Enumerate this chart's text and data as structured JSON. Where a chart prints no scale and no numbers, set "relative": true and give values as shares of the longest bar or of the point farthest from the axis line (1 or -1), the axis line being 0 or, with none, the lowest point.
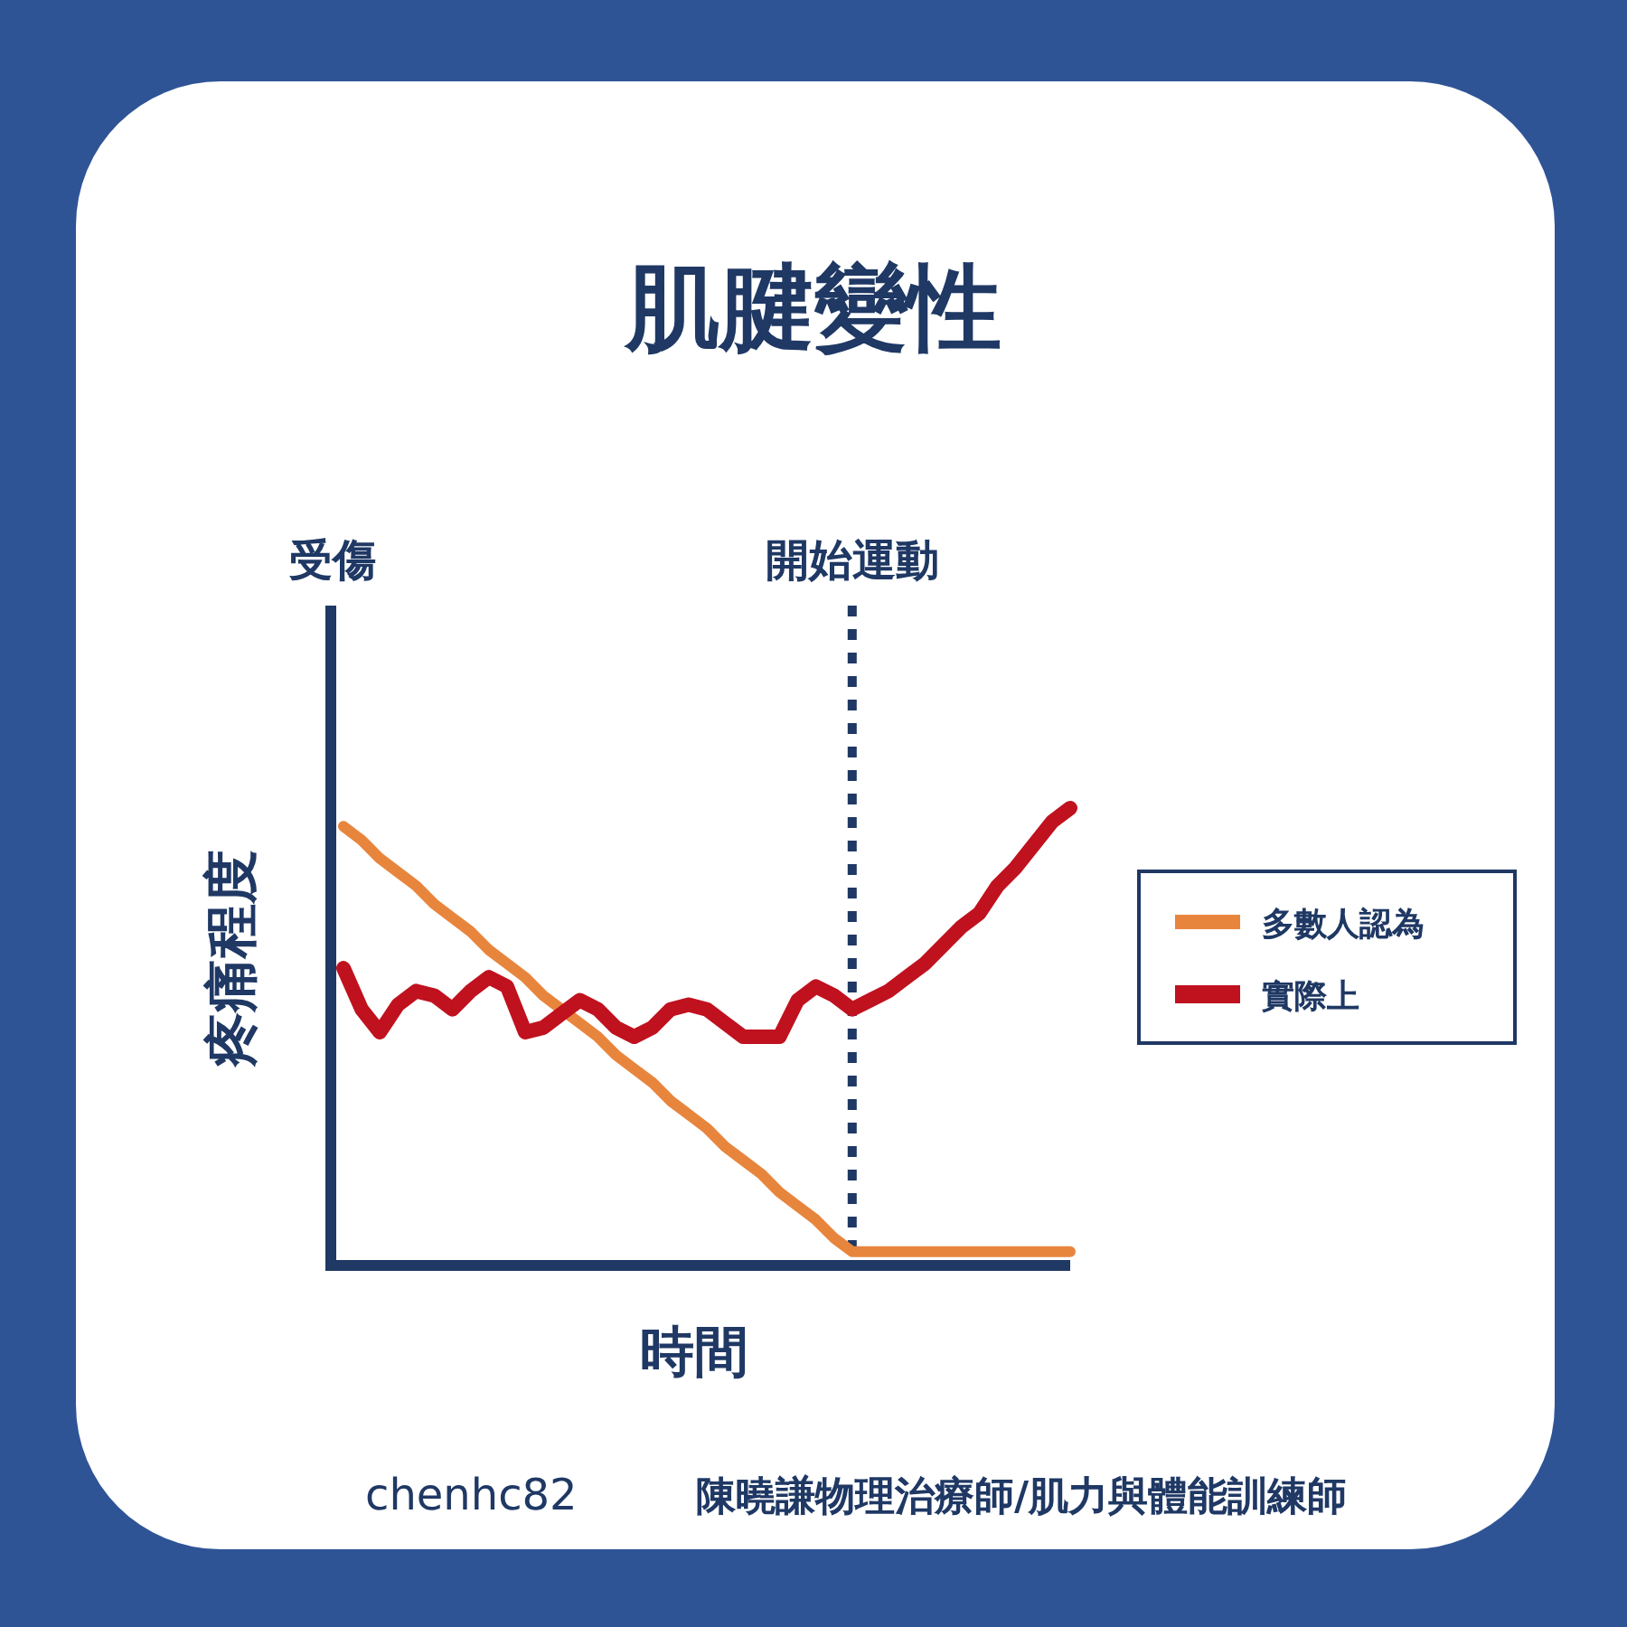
{
  "chart_data": {
    "type": "line",
    "title": "肌腱變性",
    "xlabel": "時間",
    "ylabel": "疼痛程度",
    "relative": true,
    "legend": "right",
    "grid": false,
    "categories": [
      null,
      null,
      null,
      null,
      null,
      null,
      null,
      null,
      null,
      null,
      null,
      null,
      null,
      null,
      null,
      null,
      null,
      null,
      null,
      null,
      null,
      null,
      null,
      null,
      null,
      null,
      null,
      null,
      null,
      null,
      null,
      null,
      null,
      null,
      null,
      null,
      null,
      null,
      null,
      null,
      null
    ],
    "series": [
      {
        "name": "多數人認為",
        "color": "#e8853d",
        "values": [
          0.96,
          0.93,
          0.89,
          0.86,
          0.83,
          0.79,
          0.76,
          0.73,
          0.69,
          0.66,
          0.63,
          0.59,
          0.56,
          0.53,
          0.5,
          0.46,
          0.43,
          0.4,
          0.36,
          0.33,
          0.3,
          0.26,
          0.23,
          0.2,
          0.16,
          0.13,
          0.1,
          0.06,
          0.03,
          0.03,
          0.03,
          0.03,
          0.03,
          0.03,
          0.03,
          0.03,
          0.03,
          0.03,
          0.03,
          0.03,
          0.03
        ]
      },
      {
        "name": "實際上",
        "color": "#c0111f",
        "values": [
          0.65,
          0.56,
          0.51,
          0.57,
          0.6,
          0.59,
          0.56,
          0.6,
          0.63,
          0.61,
          0.51,
          0.52,
          0.55,
          0.58,
          0.56,
          0.52,
          0.5,
          0.52,
          0.56,
          0.57,
          0.56,
          0.53,
          0.5,
          0.5,
          0.5,
          0.58,
          0.61,
          0.59,
          0.56,
          0.58,
          0.6,
          0.63,
          0.66,
          0.7,
          0.74,
          0.77,
          0.83,
          0.87,
          0.92,
          0.97,
          1
        ]
      }
    ],
    "annotations": [
      "受傷",
      "開始運動",
      "chenhc82",
      "陳曉謙物理治療師/肌力與體能訓練師"
    ]
  }
}
